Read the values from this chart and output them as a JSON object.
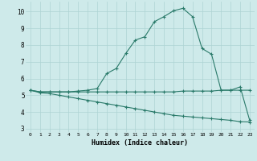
{
  "xlabel": "Humidex (Indice chaleur)",
  "bg_color": "#ceeaea",
  "line_color": "#2a7a6a",
  "grid_color": "#aed4d4",
  "xlim": [
    -0.5,
    23.5
  ],
  "ylim": [
    2.8,
    10.6
  ],
  "yticks": [
    3,
    4,
    5,
    6,
    7,
    8,
    9,
    10
  ],
  "xticks": [
    0,
    1,
    2,
    3,
    4,
    5,
    6,
    7,
    8,
    9,
    10,
    11,
    12,
    13,
    14,
    15,
    16,
    17,
    18,
    19,
    20,
    21,
    22,
    23
  ],
  "line1_x": [
    0,
    1,
    2,
    3,
    4,
    5,
    6,
    7,
    8,
    9,
    10,
    11,
    12,
    13,
    14,
    15,
    16,
    17,
    18,
    19,
    20,
    21,
    22,
    23
  ],
  "line1_y": [
    5.3,
    5.2,
    5.2,
    5.2,
    5.2,
    5.25,
    5.3,
    5.4,
    6.3,
    6.6,
    7.5,
    8.3,
    8.5,
    9.4,
    9.7,
    10.05,
    10.2,
    9.7,
    7.8,
    7.45,
    5.3,
    5.3,
    5.5,
    3.5
  ],
  "line2_x": [
    0,
    1,
    2,
    3,
    4,
    5,
    6,
    7,
    8,
    9,
    10,
    11,
    12,
    13,
    14,
    15,
    16,
    17,
    18,
    19,
    20,
    21,
    22,
    23
  ],
  "line2_y": [
    5.3,
    5.2,
    5.2,
    5.2,
    5.2,
    5.2,
    5.2,
    5.2,
    5.2,
    5.2,
    5.2,
    5.2,
    5.2,
    5.2,
    5.2,
    5.2,
    5.25,
    5.25,
    5.25,
    5.25,
    5.3,
    5.3,
    5.3,
    5.3
  ],
  "line3_x": [
    0,
    1,
    2,
    3,
    4,
    5,
    6,
    7,
    8,
    9,
    10,
    11,
    12,
    13,
    14,
    15,
    16,
    17,
    18,
    19,
    20,
    21,
    22,
    23
  ],
  "line3_y": [
    5.3,
    5.15,
    5.1,
    5.0,
    4.9,
    4.8,
    4.7,
    4.6,
    4.5,
    4.4,
    4.3,
    4.2,
    4.1,
    4.0,
    3.9,
    3.8,
    3.75,
    3.7,
    3.65,
    3.6,
    3.55,
    3.5,
    3.42,
    3.4
  ]
}
